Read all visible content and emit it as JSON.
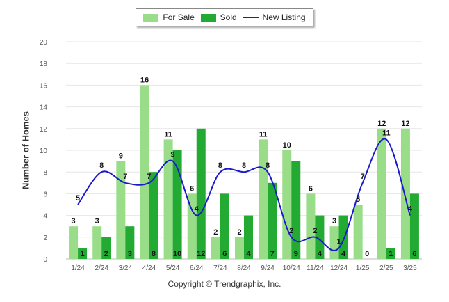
{
  "chart_data": {
    "type": "bar",
    "categories": [
      "1/24",
      "2/24",
      "3/24",
      "4/24",
      "5/24",
      "6/24",
      "7/24",
      "8/24",
      "9/24",
      "10/24",
      "11/24",
      "12/24",
      "1/25",
      "2/25",
      "3/25"
    ],
    "series": [
      {
        "name": "For Sale",
        "type": "bar",
        "color": "#99dd88",
        "values": [
          3,
          3,
          9,
          16,
          11,
          6,
          2,
          2,
          11,
          10,
          6,
          3,
          5,
          12,
          12
        ]
      },
      {
        "name": "Sold",
        "type": "bar",
        "color": "#22aa33",
        "values": [
          1,
          2,
          3,
          8,
          10,
          12,
          6,
          4,
          7,
          9,
          4,
          4,
          0,
          1,
          6
        ]
      },
      {
        "name": "New Listing",
        "type": "line",
        "color": "#1a1acc",
        "values": [
          5,
          8,
          7,
          7,
          9,
          4,
          8,
          8,
          8,
          2,
          2,
          1,
          7,
          11,
          4
        ]
      }
    ],
    "ylabel": "Number of Homes",
    "ylim": [
      0,
      20
    ],
    "yticks": [
      0,
      2,
      4,
      6,
      8,
      10,
      12,
      14,
      16,
      18,
      20
    ],
    "grid": true,
    "legend_position": "top-center"
  },
  "footer": "Copyright © Trendgraphix, Inc."
}
